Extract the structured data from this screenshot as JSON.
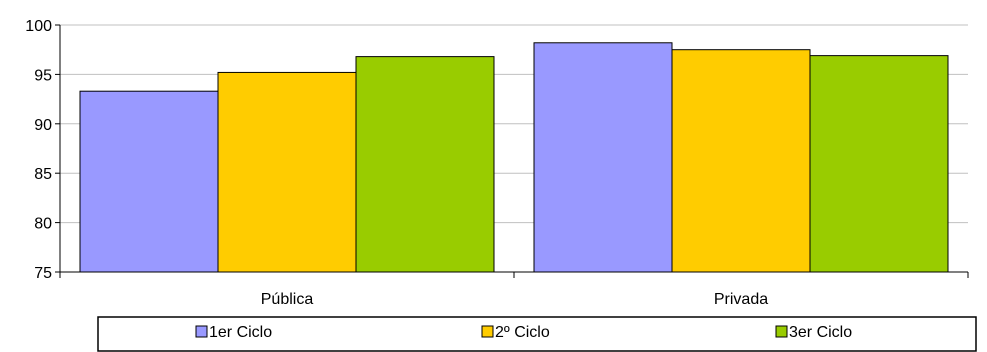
{
  "chart_data": {
    "type": "bar",
    "categories": [
      "Pública",
      "Privada"
    ],
    "series": [
      {
        "name": "1er Ciclo",
        "values": [
          93.3,
          98.2
        ],
        "color": "#9999ff"
      },
      {
        "name": "2º Ciclo",
        "values": [
          95.2,
          97.5
        ],
        "color": "#ffcc00"
      },
      {
        "name": "3er Ciclo",
        "values": [
          96.8,
          96.9
        ],
        "color": "#99cc00"
      }
    ],
    "ylim": [
      75,
      100
    ],
    "yticks": [
      "75",
      "80",
      "85",
      "90",
      "95",
      "100"
    ],
    "grid": true,
    "legend": "bottom",
    "title": "",
    "xlabel": "",
    "ylabel": ""
  }
}
